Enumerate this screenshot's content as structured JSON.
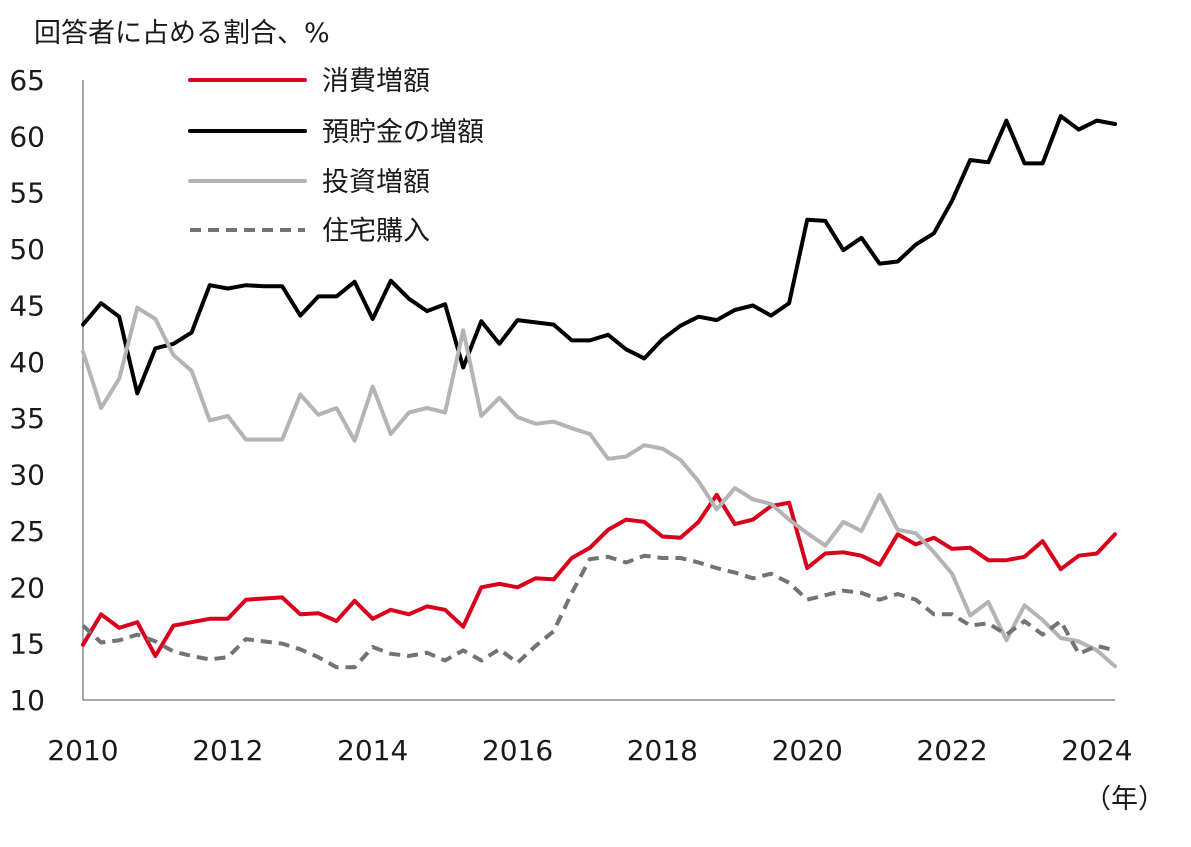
{
  "chart_data": {
    "type": "line",
    "ylabel": "回答者に占める割合、%",
    "xlabel_unit": "（年）",
    "xlim": [
      2010,
      2024.25
    ],
    "ylim": [
      10,
      65
    ],
    "y_ticks": [
      "10",
      "15",
      "20",
      "25",
      "30",
      "35",
      "40",
      "45",
      "50",
      "55",
      "60",
      "65"
    ],
    "x_ticks": [
      {
        "value": 2010,
        "label": "2010"
      },
      {
        "value": 2012,
        "label": "2012"
      },
      {
        "value": 2014,
        "label": "2014"
      },
      {
        "value": 2016,
        "label": "2016"
      },
      {
        "value": 2018,
        "label": "2018"
      },
      {
        "value": 2020,
        "label": "2020"
      },
      {
        "value": 2022,
        "label": "2022"
      },
      {
        "value": 2024,
        "label": "2024"
      }
    ],
    "grid": false,
    "legend_position": "top-left",
    "x": [
      2010.0,
      2010.25,
      2010.5,
      2010.75,
      2011.0,
      2011.25,
      2011.5,
      2011.75,
      2012.0,
      2012.25,
      2012.5,
      2012.75,
      2013.0,
      2013.25,
      2013.5,
      2013.75,
      2014.0,
      2014.25,
      2014.5,
      2014.75,
      2015.0,
      2015.25,
      2015.5,
      2015.75,
      2016.0,
      2016.25,
      2016.5,
      2016.75,
      2017.0,
      2017.25,
      2017.5,
      2017.75,
      2018.0,
      2018.25,
      2018.5,
      2018.75,
      2019.0,
      2019.25,
      2019.5,
      2019.75,
      2020.0,
      2020.25,
      2020.5,
      2020.75,
      2021.0,
      2021.25,
      2021.5,
      2021.75,
      2022.0,
      2022.25,
      2022.5,
      2022.75,
      2023.0,
      2023.25,
      2023.5,
      2023.75,
      2024.0,
      2024.25
    ],
    "series": [
      {
        "name": "消費増額",
        "color": "#d9001b",
        "style": "solid",
        "values": [
          14.9,
          17.6,
          16.4,
          16.9,
          13.9,
          16.6,
          16.9,
          17.2,
          17.2,
          18.9,
          19.0,
          19.1,
          17.6,
          17.7,
          17.0,
          18.8,
          17.2,
          18.0,
          17.6,
          18.3,
          18.0,
          16.5,
          20.0,
          20.3,
          20.0,
          20.8,
          20.7,
          22.6,
          23.5,
          25.1,
          26.0,
          25.8,
          24.5,
          24.4,
          25.8,
          28.2,
          25.6,
          26.0,
          27.2,
          27.5,
          21.7,
          23.0,
          23.1,
          22.8,
          22.0,
          24.7,
          23.8,
          24.4,
          23.4,
          23.5,
          22.4,
          22.4,
          22.7,
          24.1,
          21.6,
          22.8,
          23.0,
          24.7
        ]
      },
      {
        "name": "預貯金の増額",
        "color": "#000000",
        "style": "solid",
        "values": [
          43.3,
          45.2,
          44.0,
          37.2,
          41.2,
          41.6,
          42.6,
          46.8,
          46.5,
          46.8,
          46.7,
          46.7,
          44.1,
          45.8,
          45.8,
          47.1,
          43.8,
          47.2,
          45.6,
          44.5,
          45.1,
          39.5,
          43.6,
          41.6,
          43.7,
          43.5,
          43.3,
          41.9,
          41.9,
          42.4,
          41.1,
          40.3,
          42.0,
          43.2,
          44.0,
          43.7,
          44.6,
          45.0,
          44.1,
          45.2,
          52.6,
          52.5,
          49.9,
          51.0,
          48.7,
          48.9,
          50.4,
          51.4,
          54.3,
          57.9,
          57.7,
          61.4,
          57.6,
          57.6,
          61.8,
          60.6,
          61.4,
          61.1
        ]
      },
      {
        "name": "投資増額",
        "color": "#b4b4b4",
        "style": "solid",
        "values": [
          40.9,
          35.9,
          38.5,
          44.8,
          43.8,
          40.6,
          39.2,
          34.8,
          35.2,
          33.1,
          33.1,
          33.1,
          37.1,
          35.3,
          35.9,
          33.0,
          37.8,
          33.6,
          35.5,
          35.9,
          35.5,
          42.8,
          35.2,
          36.8,
          35.1,
          34.5,
          34.7,
          34.1,
          33.6,
          31.4,
          31.6,
          32.6,
          32.3,
          31.3,
          29.4,
          26.9,
          28.8,
          27.8,
          27.4,
          26.0,
          24.8,
          23.7,
          25.8,
          25.0,
          28.2,
          25.1,
          24.8,
          23.1,
          21.2,
          17.5,
          18.7,
          15.3,
          18.4,
          17.1,
          15.5,
          15.2,
          14.4,
          13.0
        ]
      },
      {
        "name": "住宅購入",
        "color": "#737373",
        "style": "dashed",
        "values": [
          16.6,
          15.1,
          15.3,
          15.8,
          15.2,
          14.3,
          13.9,
          13.6,
          13.8,
          15.4,
          15.2,
          15.0,
          14.5,
          13.8,
          12.9,
          12.9,
          14.7,
          14.1,
          13.9,
          14.2,
          13.5,
          14.4,
          13.5,
          14.5,
          13.3,
          14.8,
          16.1,
          19.5,
          22.5,
          22.7,
          22.2,
          22.8,
          22.6,
          22.6,
          22.2,
          21.7,
          21.3,
          20.8,
          21.2,
          20.4,
          18.9,
          19.3,
          19.7,
          19.5,
          18.9,
          19.4,
          18.9,
          17.6,
          17.6,
          16.6,
          16.8,
          15.8,
          17.0,
          15.8,
          17.0,
          14.1,
          14.8,
          14.4
        ]
      }
    ]
  }
}
